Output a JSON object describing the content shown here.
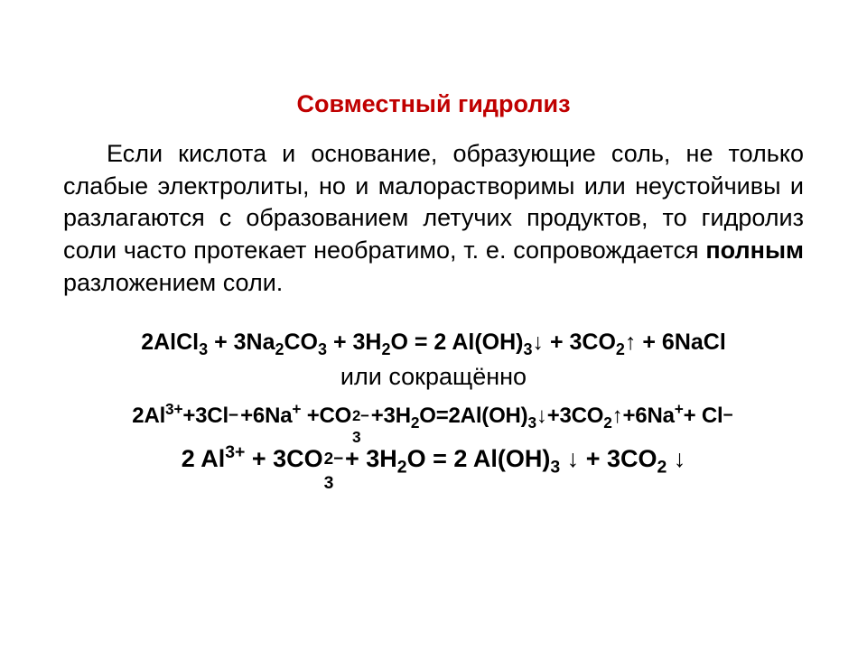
{
  "colors": {
    "title": "#c00000",
    "body": "#000000",
    "background": "#ffffff"
  },
  "typography": {
    "title_fontsize_pt": 20,
    "body_fontsize_pt": 20,
    "eq_fontsize_pt": 19,
    "font_family": "Arial"
  },
  "title": "Совместный гидролиз",
  "paragraph_parts": {
    "p1": "Если кислота и основание, образующие соль, не только слабые электролиты, но и малорастворимы или неустойчивы и разлагаются с образованием летучих продуктов, то гидролиз соли часто протекает необратимо, т. е. сопровождается ",
    "p1_bold": "полным",
    "p1_tail": " разложением соли."
  },
  "linker": "или  сокращённо",
  "eq1": {
    "text_display": "2AlCl3 + 3Na2CO3 + 3H2O = 2 Al(OH)3↓ + 3CO2↑ + 6NaCl",
    "reactants": [
      {
        "coef": 2,
        "formula": "AlCl3"
      },
      {
        "coef": 3,
        "formula": "Na2CO3"
      },
      {
        "coef": 3,
        "formula": "H2O"
      }
    ],
    "products": [
      {
        "coef": 2,
        "formula": "Al(OH)3",
        "state": "↓"
      },
      {
        "coef": 3,
        "formula": "CO2",
        "state": "↑"
      },
      {
        "coef": 6,
        "formula": "NaCl"
      }
    ]
  },
  "eq2": {
    "text_display": "2Al3+ +3Cl− +6Na+ +CO3^2− +3H2O = 2Al(OH)3↓ +3CO2↑ +6Na+ + Cl−",
    "reactants": [
      {
        "coef": 2,
        "species": "Al",
        "charge": "3+"
      },
      {
        "coef": 3,
        "species": "Cl",
        "charge": "−"
      },
      {
        "coef": 6,
        "species": "Na",
        "charge": "+"
      },
      {
        "coef": 1,
        "species": "CO3",
        "charge": "2−"
      },
      {
        "coef": 3,
        "species": "H2O"
      }
    ],
    "products": [
      {
        "coef": 2,
        "species": "Al(OH)3",
        "state": "↓"
      },
      {
        "coef": 3,
        "species": "CO2",
        "state": "↑"
      },
      {
        "coef": 6,
        "species": "Na",
        "charge": "+"
      },
      {
        "coef": 1,
        "species": "Cl",
        "charge": "−"
      }
    ]
  },
  "eq3": {
    "text_display": "2 Al3+ + 3CO3^2− + 3H2O = 2 Al(OH)3 ↓ + 3CO2 ↓",
    "reactants": [
      {
        "coef": 2,
        "species": "Al",
        "charge": "3+"
      },
      {
        "coef": 3,
        "species": "CO3",
        "charge": "2−"
      },
      {
        "coef": 3,
        "species": "H2O"
      }
    ],
    "products": [
      {
        "coef": 2,
        "species": "Al(OH)3",
        "state": "↓"
      },
      {
        "coef": 3,
        "species": "CO2",
        "state": "↓"
      }
    ]
  }
}
